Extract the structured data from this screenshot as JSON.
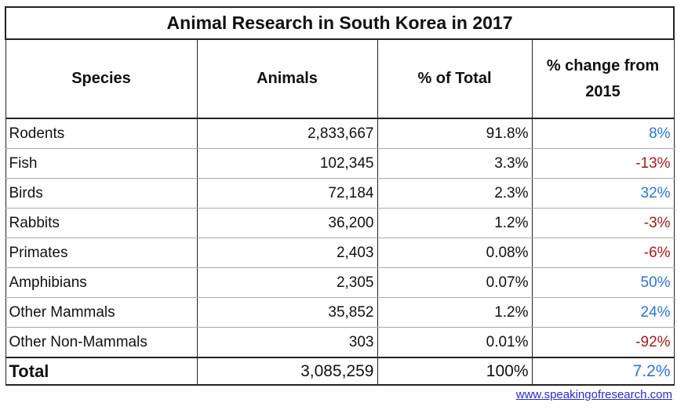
{
  "title": "Animal Research in South Korea in 2017",
  "headers": [
    "Species",
    "Animals",
    "% of Total",
    "% change from 2015"
  ],
  "rows": [
    {
      "species": "Rodents",
      "animals": "2,833,667",
      "pct_total": "91.8%",
      "change": "8%",
      "dir": "pos"
    },
    {
      "species": "Fish",
      "animals": "102,345",
      "pct_total": "3.3%",
      "change": "-13%",
      "dir": "neg"
    },
    {
      "species": "Birds",
      "animals": "72,184",
      "pct_total": "2.3%",
      "change": "32%",
      "dir": "pos"
    },
    {
      "species": "Rabbits",
      "animals": "36,200",
      "pct_total": "1.2%",
      "change": "-3%",
      "dir": "neg"
    },
    {
      "species": "Primates",
      "animals": "2,403",
      "pct_total": "0.08%",
      "change": "-6%",
      "dir": "neg"
    },
    {
      "species": "Amphibians",
      "animals": "2,305",
      "pct_total": "0.07%",
      "change": "50%",
      "dir": "pos"
    },
    {
      "species": "Other Mammals",
      "animals": "35,852",
      "pct_total": "1.2%",
      "change": "24%",
      "dir": "pos"
    },
    {
      "species": "Other Non-Mammals",
      "animals": "303",
      "pct_total": "0.01%",
      "change": "-92%",
      "dir": "neg"
    }
  ],
  "total": {
    "species": "Total",
    "animals": "3,085,259",
    "pct_total": "100%",
    "change": "7.2%",
    "dir": "pos"
  },
  "footer_link": "www.speakingofresearch.com",
  "colors": {
    "positive": "#2e74d0",
    "negative": "#a11d1d",
    "link": "#2a2ac8"
  },
  "chart_data": {
    "type": "table",
    "title": "Animal Research in South Korea in 2017",
    "columns": [
      "Species",
      "Animals",
      "% of Total",
      "% change from 2015"
    ],
    "rows": [
      [
        "Rodents",
        2833667,
        91.8,
        8
      ],
      [
        "Fish",
        102345,
        3.3,
        -13
      ],
      [
        "Birds",
        72184,
        2.3,
        32
      ],
      [
        "Rabbits",
        36200,
        1.2,
        -3
      ],
      [
        "Primates",
        2403,
        0.08,
        -6
      ],
      [
        "Amphibians",
        2305,
        0.07,
        50
      ],
      [
        "Other Mammals",
        35852,
        1.2,
        24
      ],
      [
        "Other Non-Mammals",
        303,
        0.01,
        -92
      ],
      [
        "Total",
        3085259,
        100,
        7.2
      ]
    ]
  }
}
